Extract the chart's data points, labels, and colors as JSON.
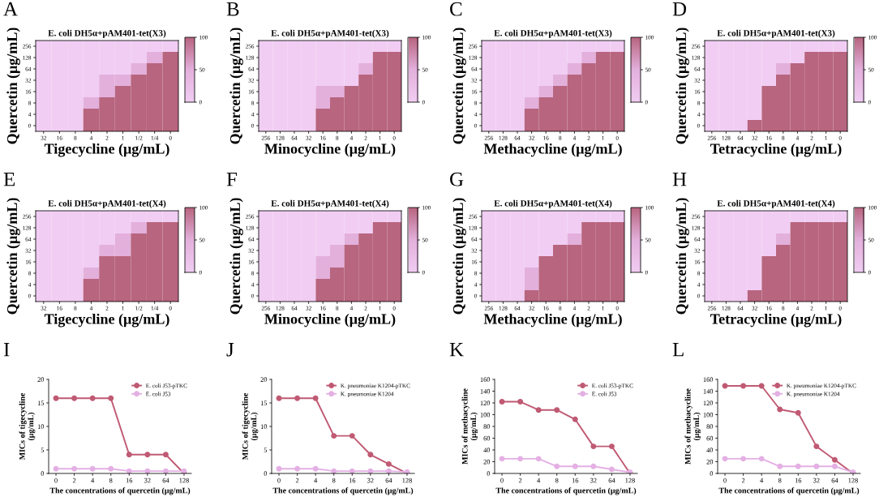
{
  "chart_data": [
    {
      "type": "heatmap",
      "annotations": [
        "A"
      ],
      "title": "E. coli DH5α+pAM401-tet(X3)",
      "xlabel": "Tigecycline (μg/mL)",
      "ylabel": "Quercetin (μg/mL)",
      "categories": [
        "32",
        "16",
        "8",
        "4",
        "2",
        "1",
        "1/2",
        "1/4",
        "0"
      ],
      "y_categories": [
        "256",
        "128",
        "64",
        "32",
        "16",
        "8",
        "4",
        "0"
      ],
      "clim": [
        0,
        100
      ],
      "cticks": [
        0,
        50,
        100
      ],
      "cells": [
        [
          0,
          0,
          0,
          0,
          0,
          0,
          0,
          0,
          0
        ],
        [
          0,
          0,
          0,
          0,
          0,
          0,
          0,
          50,
          100
        ],
        [
          0,
          0,
          0,
          0,
          0,
          0,
          50,
          100,
          100
        ],
        [
          0,
          0,
          0,
          0,
          50,
          50,
          100,
          100,
          100
        ],
        [
          0,
          0,
          0,
          0,
          50,
          100,
          100,
          100,
          100
        ],
        [
          0,
          0,
          0,
          50,
          100,
          100,
          100,
          100,
          100
        ],
        [
          0,
          0,
          0,
          100,
          100,
          100,
          100,
          100,
          100
        ],
        [
          0,
          0,
          0,
          100,
          100,
          100,
          100,
          100,
          100
        ]
      ]
    },
    {
      "type": "heatmap",
      "annotations": [
        "B"
      ],
      "title": "E. coli DH5α+pAM401-tet(X3)",
      "xlabel": "Minocycline (μg/mL)",
      "ylabel": "Quercetin (μg/mL)",
      "categories": [
        "256",
        "128",
        "64",
        "32",
        "16",
        "8",
        "4",
        "2",
        "1",
        "0"
      ],
      "y_categories": [
        "256",
        "128",
        "64",
        "32",
        "16",
        "8",
        "4",
        "0"
      ],
      "clim": [
        0,
        100
      ],
      "cticks": [
        0,
        50,
        100
      ],
      "cells": [
        [
          0,
          0,
          0,
          0,
          0,
          0,
          0,
          0,
          0,
          0
        ],
        [
          0,
          0,
          0,
          0,
          0,
          0,
          0,
          0,
          100,
          100
        ],
        [
          0,
          0,
          0,
          0,
          0,
          0,
          0,
          50,
          100,
          100
        ],
        [
          0,
          0,
          0,
          0,
          0,
          0,
          0,
          100,
          100,
          100
        ],
        [
          0,
          0,
          0,
          0,
          50,
          50,
          100,
          100,
          100,
          100
        ],
        [
          0,
          0,
          0,
          0,
          50,
          100,
          100,
          100,
          100,
          100
        ],
        [
          0,
          0,
          0,
          0,
          100,
          100,
          100,
          100,
          100,
          100
        ],
        [
          0,
          0,
          0,
          0,
          100,
          100,
          100,
          100,
          100,
          100
        ]
      ]
    },
    {
      "type": "heatmap",
      "annotations": [
        "C"
      ],
      "title": "E. coli DH5α+pAM401-tet(X3)",
      "xlabel": "Methacycline (μg/mL)",
      "ylabel": "Quercetin (μg/mL)",
      "categories": [
        "256",
        "128",
        "64",
        "32",
        "16",
        "8",
        "4",
        "2",
        "1",
        "0"
      ],
      "y_categories": [
        "256",
        "128",
        "64",
        "32",
        "16",
        "8",
        "4",
        "0"
      ],
      "clim": [
        0,
        100
      ],
      "cticks": [
        0,
        50,
        100
      ],
      "cells": [
        [
          0,
          0,
          0,
          0,
          0,
          0,
          0,
          0,
          0,
          0
        ],
        [
          0,
          0,
          0,
          0,
          0,
          0,
          0,
          50,
          100,
          100
        ],
        [
          0,
          0,
          0,
          0,
          0,
          0,
          50,
          100,
          100,
          100
        ],
        [
          0,
          0,
          0,
          0,
          0,
          50,
          100,
          100,
          100,
          100
        ],
        [
          0,
          0,
          0,
          0,
          50,
          100,
          100,
          100,
          100,
          100
        ],
        [
          0,
          0,
          0,
          50,
          100,
          100,
          100,
          100,
          100,
          100
        ],
        [
          0,
          0,
          0,
          100,
          100,
          100,
          100,
          100,
          100,
          100
        ],
        [
          0,
          0,
          0,
          100,
          100,
          100,
          100,
          100,
          100,
          100
        ]
      ]
    },
    {
      "type": "heatmap",
      "annotations": [
        "D"
      ],
      "title": "E. coli DH5α+pAM401-tet(X3)",
      "xlabel": "Tetracycline (μg/mL)",
      "ylabel": "Quercetin (μg/mL)",
      "categories": [
        "256",
        "128",
        "64",
        "32",
        "16",
        "8",
        "4",
        "2",
        "1",
        "0"
      ],
      "y_categories": [
        "256",
        "128",
        "64",
        "32",
        "16",
        "8",
        "4",
        "0"
      ],
      "clim": [
        0,
        100
      ],
      "cticks": [
        0,
        50,
        100
      ],
      "cells": [
        [
          0,
          0,
          0,
          0,
          0,
          0,
          0,
          0,
          0,
          0
        ],
        [
          0,
          0,
          0,
          0,
          0,
          0,
          0,
          100,
          100,
          100
        ],
        [
          0,
          0,
          0,
          0,
          0,
          50,
          100,
          100,
          100,
          100
        ],
        [
          0,
          0,
          0,
          0,
          0,
          100,
          100,
          100,
          100,
          100
        ],
        [
          0,
          0,
          0,
          0,
          100,
          100,
          100,
          100,
          100,
          100
        ],
        [
          0,
          0,
          0,
          0,
          100,
          100,
          100,
          100,
          100,
          100
        ],
        [
          0,
          0,
          0,
          0,
          100,
          100,
          100,
          100,
          100,
          100
        ],
        [
          0,
          0,
          0,
          100,
          100,
          100,
          100,
          100,
          100,
          100
        ]
      ]
    },
    {
      "type": "heatmap",
      "annotations": [
        "E"
      ],
      "title": "E. coli DH5α+pAM401-tet(X4)",
      "xlabel": "Tigecycline (μg/mL)",
      "ylabel": "Quercetin (μg/mL)",
      "categories": [
        "32",
        "16",
        "8",
        "4",
        "2",
        "1",
        "1/2",
        "1/4",
        "0"
      ],
      "y_categories": [
        "256",
        "128",
        "64",
        "32",
        "16",
        "8",
        "4",
        "0"
      ],
      "clim": [
        0,
        100
      ],
      "cticks": [
        0,
        50,
        100
      ],
      "cells": [
        [
          0,
          0,
          0,
          0,
          0,
          0,
          0,
          0,
          0
        ],
        [
          0,
          0,
          0,
          0,
          0,
          0,
          50,
          100,
          100
        ],
        [
          0,
          0,
          0,
          0,
          0,
          50,
          100,
          100,
          100
        ],
        [
          0,
          0,
          0,
          0,
          50,
          50,
          100,
          100,
          100
        ],
        [
          0,
          0,
          0,
          0,
          100,
          100,
          100,
          100,
          100
        ],
        [
          0,
          0,
          0,
          50,
          100,
          100,
          100,
          100,
          100
        ],
        [
          0,
          0,
          0,
          100,
          100,
          100,
          100,
          100,
          100
        ],
        [
          0,
          0,
          0,
          100,
          100,
          100,
          100,
          100,
          100
        ]
      ]
    },
    {
      "type": "heatmap",
      "annotations": [
        "F"
      ],
      "title": "E. coli DH5α+pAM401-tet(X4)",
      "xlabel": "Minocycline (μg/mL)",
      "ylabel": "Quercetin (μg/mL)",
      "categories": [
        "256",
        "128",
        "64",
        "32",
        "16",
        "8",
        "4",
        "2",
        "1",
        "0"
      ],
      "y_categories": [
        "256",
        "128",
        "64",
        "32",
        "16",
        "8",
        "4",
        "0"
      ],
      "clim": [
        0,
        100
      ],
      "cticks": [
        0,
        50,
        100
      ],
      "cells": [
        [
          0,
          0,
          0,
          0,
          0,
          0,
          0,
          0,
          0,
          0
        ],
        [
          0,
          0,
          0,
          0,
          0,
          0,
          0,
          0,
          100,
          100
        ],
        [
          0,
          0,
          0,
          0,
          0,
          0,
          50,
          100,
          100,
          100
        ],
        [
          0,
          0,
          0,
          0,
          0,
          50,
          100,
          100,
          100,
          100
        ],
        [
          0,
          0,
          0,
          0,
          50,
          50,
          100,
          100,
          100,
          100
        ],
        [
          0,
          0,
          0,
          0,
          50,
          100,
          100,
          100,
          100,
          100
        ],
        [
          0,
          0,
          0,
          0,
          100,
          100,
          100,
          100,
          100,
          100
        ],
        [
          0,
          0,
          0,
          0,
          100,
          100,
          100,
          100,
          100,
          100
        ]
      ]
    },
    {
      "type": "heatmap",
      "annotations": [
        "G"
      ],
      "title": "E. coli DH5α+pAM401-tet(X4)",
      "xlabel": "Methacycline (μg/mL)",
      "ylabel": "Quercetin (μg/mL)",
      "categories": [
        "256",
        "128",
        "64",
        "32",
        "16",
        "8",
        "4",
        "2",
        "1",
        "0"
      ],
      "y_categories": [
        "256",
        "128",
        "64",
        "32",
        "16",
        "8",
        "4",
        "0"
      ],
      "clim": [
        0,
        100
      ],
      "cticks": [
        0,
        50,
        100
      ],
      "cells": [
        [
          0,
          0,
          0,
          0,
          0,
          0,
          0,
          0,
          0,
          0
        ],
        [
          0,
          0,
          0,
          0,
          0,
          0,
          0,
          100,
          100,
          100
        ],
        [
          0,
          0,
          0,
          0,
          0,
          0,
          50,
          100,
          100,
          100
        ],
        [
          0,
          0,
          0,
          0,
          0,
          100,
          100,
          100,
          100,
          100
        ],
        [
          0,
          0,
          0,
          0,
          100,
          100,
          100,
          100,
          100,
          100
        ],
        [
          0,
          0,
          0,
          50,
          100,
          100,
          100,
          100,
          100,
          100
        ],
        [
          0,
          0,
          0,
          50,
          100,
          100,
          100,
          100,
          100,
          100
        ],
        [
          0,
          0,
          0,
          100,
          100,
          100,
          100,
          100,
          100,
          100
        ]
      ]
    },
    {
      "type": "heatmap",
      "annotations": [
        "H"
      ],
      "title": "E. coli DH5α+pAM401-tet(X4)",
      "xlabel": "Tetracycline (μg/mL)",
      "ylabel": "Quercetin (μg/mL)",
      "categories": [
        "256",
        "128",
        "64",
        "32",
        "16",
        "8",
        "4",
        "2",
        "1",
        "0"
      ],
      "y_categories": [
        "256",
        "128",
        "64",
        "32",
        "16",
        "8",
        "4",
        "0"
      ],
      "clim": [
        0,
        100
      ],
      "cticks": [
        0,
        50,
        100
      ],
      "cells": [
        [
          0,
          0,
          0,
          0,
          0,
          0,
          0,
          0,
          0,
          0
        ],
        [
          0,
          0,
          0,
          0,
          0,
          0,
          100,
          100,
          100,
          100
        ],
        [
          0,
          0,
          0,
          0,
          0,
          50,
          100,
          100,
          100,
          100
        ],
        [
          0,
          0,
          0,
          0,
          0,
          100,
          100,
          100,
          100,
          100
        ],
        [
          0,
          0,
          0,
          0,
          100,
          100,
          100,
          100,
          100,
          100
        ],
        [
          0,
          0,
          0,
          0,
          100,
          100,
          100,
          100,
          100,
          100
        ],
        [
          0,
          0,
          0,
          0,
          100,
          100,
          100,
          100,
          100,
          100
        ],
        [
          0,
          0,
          0,
          100,
          100,
          100,
          100,
          100,
          100,
          100
        ]
      ]
    },
    {
      "type": "line",
      "annotations": [
        "I"
      ],
      "xlabel": "The concentrations of quercetin (μg/mL)",
      "ylabel": "MICs of tigecycline\n(μg/mL)",
      "categories": [
        "0",
        "2",
        "4",
        "8",
        "16",
        "32",
        "64",
        "128"
      ],
      "ylim": [
        0,
        20
      ],
      "yticks": [
        0,
        5,
        10,
        15,
        20
      ],
      "legend": "top right",
      "marker": "circle",
      "series": [
        {
          "name": "E. coli J53-pTKC",
          "color": "#c05a73",
          "values": [
            16,
            16,
            16,
            16,
            4,
            4,
            4,
            0
          ]
        },
        {
          "name": "E. coli J53",
          "color": "#e4b0e4",
          "values": [
            1,
            1,
            1,
            1,
            0.5,
            0.5,
            0.5,
            0.5
          ]
        }
      ]
    },
    {
      "type": "line",
      "annotations": [
        "J"
      ],
      "xlabel": "The concentrations of quercetin (μg/mL)",
      "ylabel": "MICs of tigecycline\n(μg/mL)",
      "categories": [
        "0",
        "2",
        "4",
        "8",
        "16",
        "32",
        "64",
        "128"
      ],
      "ylim": [
        0,
        20
      ],
      "yticks": [
        0,
        5,
        10,
        15,
        20
      ],
      "legend": "top right",
      "marker": "circle",
      "series": [
        {
          "name": "K. pneumoniae K1204-pTKC",
          "color": "#c05a73",
          "values": [
            16,
            16,
            16,
            8,
            8,
            4,
            2,
            0
          ]
        },
        {
          "name": "K. pneumoniae K1204",
          "color": "#e4b0e4",
          "values": [
            1,
            1,
            1,
            0.5,
            0.5,
            0.5,
            0.5,
            0.3
          ]
        }
      ]
    },
    {
      "type": "line",
      "annotations": [
        "K"
      ],
      "xlabel": "The concentrations of quercetin (μg/mL)",
      "ylabel": "MICs of methacycline\n(μg/mL)",
      "categories": [
        "0",
        "2",
        "4",
        "8",
        "16",
        "32",
        "64",
        "128"
      ],
      "ylim": [
        0,
        160
      ],
      "yticks": [
        0,
        20,
        40,
        60,
        80,
        100,
        120,
        140,
        160
      ],
      "legend": "top right",
      "marker": "circle",
      "series": [
        {
          "name": "E. coli J53-pTKC",
          "color": "#c05a73",
          "values": [
            122,
            122,
            108,
            108,
            92,
            46,
            46,
            0
          ]
        },
        {
          "name": "E. coli J53",
          "color": "#e4b0e4",
          "values": [
            25,
            25,
            25,
            12,
            12,
            12,
            7,
            2
          ]
        }
      ]
    },
    {
      "type": "line",
      "annotations": [
        "L"
      ],
      "xlabel": "The concentrations of quercetin (μg/mL)",
      "ylabel": "MICs of methacycline\n(μg/mL)",
      "categories": [
        "0",
        "2",
        "4",
        "8",
        "16",
        "32",
        "64",
        "128"
      ],
      "ylim": [
        0,
        160
      ],
      "yticks": [
        0,
        20,
        40,
        60,
        80,
        100,
        120,
        140,
        160
      ],
      "legend": "top right",
      "marker": "circle",
      "series": [
        {
          "name": "K. pneumoniae K1204-pTKC",
          "color": "#c05a73",
          "values": [
            149,
            149,
            149,
            109,
            103,
            46,
            23,
            0
          ]
        },
        {
          "name": "K. pneumoniae K1204",
          "color": "#e4b0e4",
          "values": [
            25,
            25,
            25,
            12,
            12,
            12,
            12,
            2
          ]
        }
      ]
    }
  ]
}
